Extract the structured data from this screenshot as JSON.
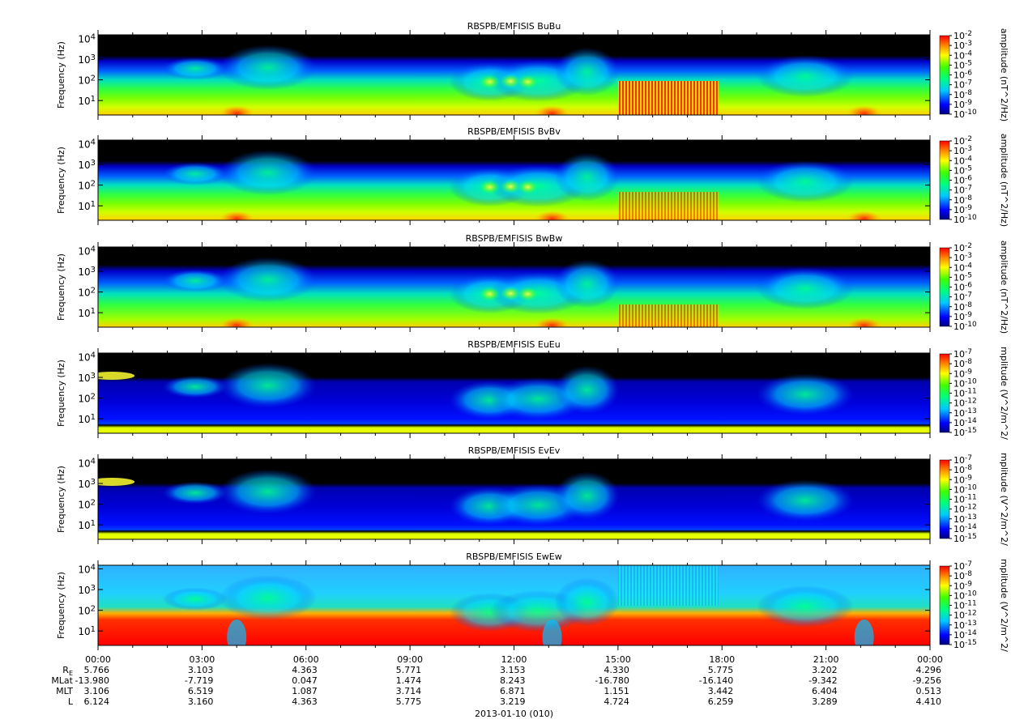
{
  "figure": {
    "date_label": "2013-01-10 (010)",
    "ylabel": "Frequency (Hz)",
    "ytick_labels": [
      "10^1",
      "10^2",
      "10^3",
      "10^4"
    ],
    "xtick_labels": [
      "00:00",
      "03:00",
      "06:00",
      "09:00",
      "12:00",
      "15:00",
      "18:00",
      "21:00",
      "00:00"
    ],
    "ephemeris": [
      {
        "name": "R_E",
        "label_main": "R",
        "label_sub": "E",
        "values": [
          "5.766",
          "3.103",
          "4.363",
          "5.771",
          "3.153",
          "4.330",
          "5.775",
          "3.202",
          "4.296"
        ]
      },
      {
        "name": "MLat",
        "label_main": "MLat",
        "label_sub": "",
        "values": [
          "-13.980",
          "-7.719",
          "0.047",
          "1.474",
          "8.243",
          "-16.780",
          "-16.140",
          "-9.342",
          "-9.256"
        ]
      },
      {
        "name": "MLT",
        "label_main": "MLT",
        "label_sub": "",
        "values": [
          "3.106",
          "6.519",
          "1.087",
          "3.714",
          "6.871",
          "1.151",
          "3.442",
          "6.404",
          "0.513"
        ]
      },
      {
        "name": "L",
        "label_main": "L",
        "label_sub": "",
        "values": [
          "6.124",
          "3.160",
          "4.363",
          "5.775",
          "3.219",
          "4.724",
          "6.259",
          "3.289",
          "4.410"
        ]
      }
    ]
  },
  "chart_data": [
    {
      "type": "heatmap",
      "title": "RBSPB/EMFISIS  BuBu",
      "ylabel": "Frequency (Hz)",
      "yscale": "log",
      "ylim": [
        2,
        15000
      ],
      "xlim": [
        "2013-01-10 00:00",
        "2013-01-11 00:00"
      ],
      "xtick_labels": [
        "00:00",
        "03:00",
        "06:00",
        "09:00",
        "12:00",
        "15:00",
        "18:00",
        "21:00",
        "00:00"
      ],
      "colorbar": {
        "label": "amplitude (nT^2/Hz)",
        "scale": "log",
        "range": [
          1e-10,
          0.01
        ],
        "exponents": [
          -2,
          -3,
          -4,
          -5,
          -6,
          -7,
          -8,
          -9,
          -10
        ]
      }
    },
    {
      "type": "heatmap",
      "title": "RBSPB/EMFISIS  BvBv",
      "ylabel": "Frequency (Hz)",
      "yscale": "log",
      "ylim": [
        2,
        15000
      ],
      "xlim": [
        "2013-01-10 00:00",
        "2013-01-11 00:00"
      ],
      "xtick_labels": [
        "00:00",
        "03:00",
        "06:00",
        "09:00",
        "12:00",
        "15:00",
        "18:00",
        "21:00",
        "00:00"
      ],
      "colorbar": {
        "label": "amplitude (nT^2/Hz)",
        "scale": "log",
        "range": [
          1e-10,
          0.01
        ],
        "exponents": [
          -2,
          -3,
          -4,
          -5,
          -6,
          -7,
          -8,
          -9,
          -10
        ]
      }
    },
    {
      "type": "heatmap",
      "title": "RBSPB/EMFISIS  BwBw",
      "ylabel": "Frequency (Hz)",
      "yscale": "log",
      "ylim": [
        2,
        15000
      ],
      "xlim": [
        "2013-01-10 00:00",
        "2013-01-11 00:00"
      ],
      "xtick_labels": [
        "00:00",
        "03:00",
        "06:00",
        "09:00",
        "12:00",
        "15:00",
        "18:00",
        "21:00",
        "00:00"
      ],
      "colorbar": {
        "label": "amplitude (nT^2/Hz)",
        "scale": "log",
        "range": [
          1e-10,
          0.01
        ],
        "exponents": [
          -2,
          -3,
          -4,
          -5,
          -6,
          -7,
          -8,
          -9,
          -10
        ]
      }
    },
    {
      "type": "heatmap",
      "title": "RBSPB/EMFISIS  EuEu",
      "ylabel": "Frequency (Hz)",
      "yscale": "log",
      "ylim": [
        2,
        15000
      ],
      "xlim": [
        "2013-01-10 00:00",
        "2013-01-11 00:00"
      ],
      "xtick_labels": [
        "00:00",
        "03:00",
        "06:00",
        "09:00",
        "12:00",
        "15:00",
        "18:00",
        "21:00",
        "00:00"
      ],
      "colorbar": {
        "label": "mplitude (V^2/m^2/",
        "scale": "log",
        "range": [
          1e-15,
          1e-07
        ],
        "exponents": [
          -7,
          -8,
          -9,
          -10,
          -11,
          -12,
          -13,
          -14,
          -15
        ]
      }
    },
    {
      "type": "heatmap",
      "title": "RBSPB/EMFISIS  EvEv",
      "ylabel": "Frequency (Hz)",
      "yscale": "log",
      "ylim": [
        2,
        15000
      ],
      "xlim": [
        "2013-01-10 00:00",
        "2013-01-11 00:00"
      ],
      "xtick_labels": [
        "00:00",
        "03:00",
        "06:00",
        "09:00",
        "12:00",
        "15:00",
        "18:00",
        "21:00",
        "00:00"
      ],
      "colorbar": {
        "label": "mplitude (V^2/m^2/",
        "scale": "log",
        "range": [
          1e-15,
          1e-07
        ],
        "exponents": [
          -7,
          -8,
          -9,
          -10,
          -11,
          -12,
          -13,
          -14,
          -15
        ]
      }
    },
    {
      "type": "heatmap",
      "title": "RBSPB/EMFISIS  EwEw",
      "ylabel": "Frequency (Hz)",
      "yscale": "log",
      "ylim": [
        2,
        15000
      ],
      "xlim": [
        "2013-01-10 00:00",
        "2013-01-11 00:00"
      ],
      "xtick_labels": [
        "00:00",
        "03:00",
        "06:00",
        "09:00",
        "12:00",
        "15:00",
        "18:00",
        "21:00",
        "00:00"
      ],
      "colorbar": {
        "label": "mplitude (V^2/m^2/",
        "scale": "log",
        "range": [
          1e-15,
          1e-07
        ],
        "exponents": [
          -7,
          -8,
          -9,
          -10,
          -11,
          -12,
          -13,
          -14,
          -15
        ]
      }
    }
  ]
}
